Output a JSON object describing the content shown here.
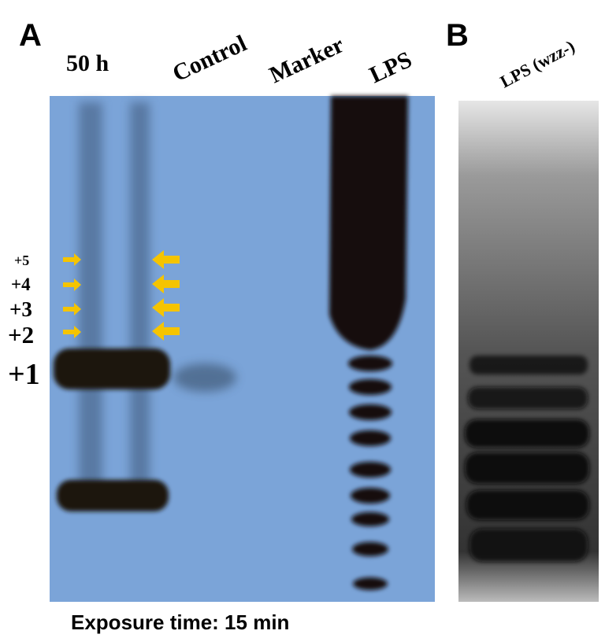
{
  "panel_a": {
    "label": "A",
    "lanes": [
      "50 h",
      "Control",
      "Marker",
      "LPS"
    ],
    "band_labels": [
      "+5",
      "+4",
      "+3",
      "+2",
      "+1"
    ],
    "caption": "Exposure time: 15 min"
  },
  "panel_b": {
    "label": "B",
    "lane": "LPS (wzz-)"
  }
}
